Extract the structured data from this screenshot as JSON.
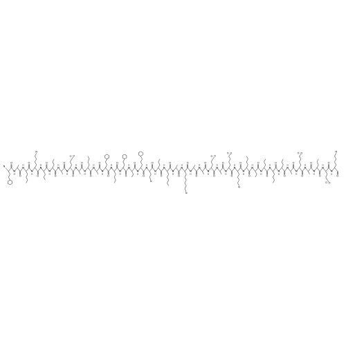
{
  "atom_labels": [
    "O",
    "N",
    "H"
  ]
}
